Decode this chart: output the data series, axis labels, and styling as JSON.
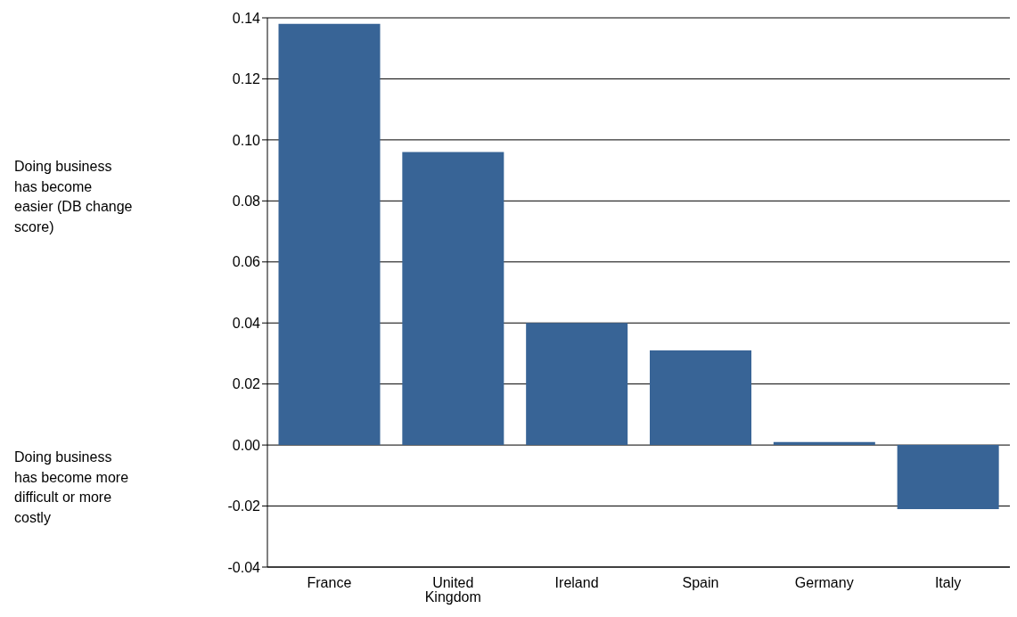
{
  "chart_data": {
    "type": "bar",
    "categories": [
      "France",
      "United Kingdom",
      "Ireland",
      "Spain",
      "Germany",
      "Italy"
    ],
    "values": [
      0.138,
      0.096,
      0.04,
      0.031,
      0.001,
      -0.021
    ],
    "color": "#386496",
    "ylim": [
      -0.04,
      0.14
    ],
    "yticks": [
      -0.04,
      -0.02,
      {
        "value": 0,
        "label": "0.00"
      },
      0.02,
      0.04,
      0.06,
      0.08,
      {
        "value": 0.1,
        "label": "0.10"
      },
      0.12,
      0.14
    ],
    "grid": "y",
    "annotations": [
      "Doing business has become easier (DB change score)",
      "Doing business has become more difficult or more costly"
    ]
  }
}
